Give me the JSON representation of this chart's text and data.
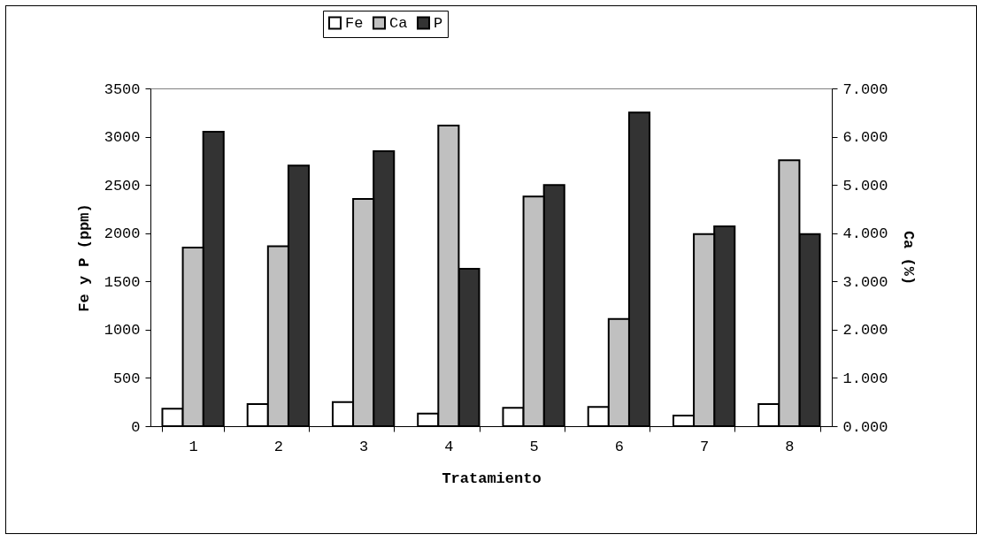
{
  "chart_data": {
    "type": "bar",
    "xlabel": "Tratamiento",
    "ylabel": "Fe y P (ppm)",
    "y2label": "Ca (%)",
    "categories": [
      "1",
      "2",
      "3",
      "4",
      "5",
      "6",
      "7",
      "8"
    ],
    "series": [
      {
        "name": "Fe",
        "color": "#ffffff",
        "values": [
          180,
          230,
          250,
          130,
          190,
          200,
          110,
          230
        ]
      },
      {
        "name": "Ca",
        "color": "#c0c0c0",
        "axis": "y2",
        "values": [
          3.7,
          3.73,
          4.71,
          6.23,
          4.76,
          2.22,
          3.98,
          5.51
        ]
      },
      {
        "name": "P",
        "color": "#333333",
        "values": [
          3050,
          2700,
          2850,
          1630,
          2500,
          3250,
          2070,
          1990
        ]
      }
    ],
    "ylim": [
      0,
      3500
    ],
    "yticks": [
      0,
      500,
      1000,
      1500,
      2000,
      2500,
      3000,
      3500
    ],
    "y2lim": [
      0,
      7
    ],
    "y2ticks": [
      {
        "value": 0,
        "label": "0.000"
      },
      {
        "value": 1,
        "label": "1.000"
      },
      {
        "value": 2,
        "label": "2.000"
      },
      {
        "value": 3,
        "label": "3.000"
      },
      {
        "value": 4,
        "label": "4.000"
      },
      {
        "value": 5,
        "label": "5.000"
      },
      {
        "value": 6,
        "label": "6.000"
      },
      {
        "value": 7,
        "label": "7.000"
      }
    ],
    "grid": false,
    "legend": "top"
  }
}
